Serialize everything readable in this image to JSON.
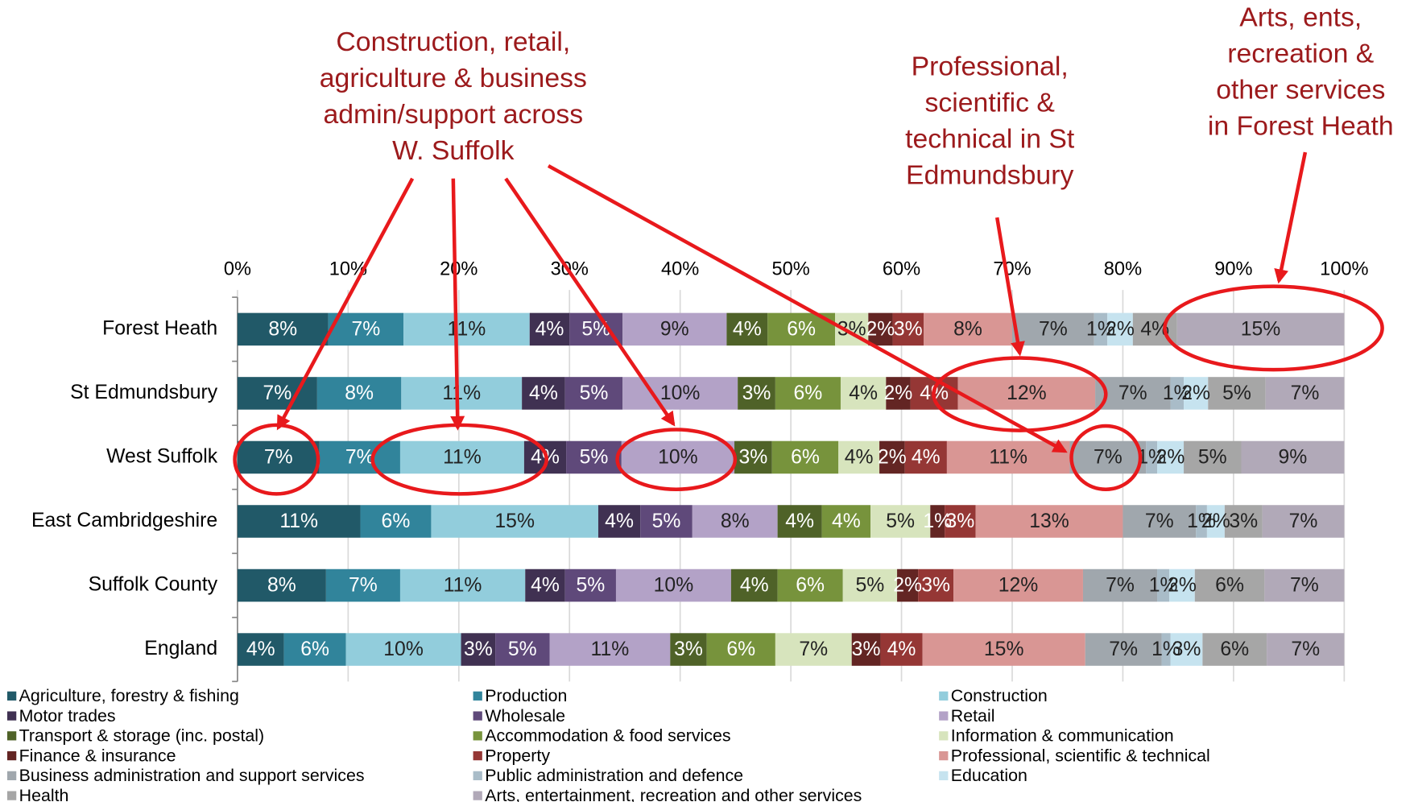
{
  "chart_data": {
    "type": "stacked_barh",
    "categories": [
      "Forest Heath",
      "St Edmundsbury",
      "West Suffolk",
      "East Cambridgeshire",
      "Suffolk County",
      "England"
    ],
    "xlim": [
      0,
      100
    ],
    "xticks": [
      {
        "value": 0,
        "label": "0%"
      },
      {
        "value": 10,
        "label": "10%"
      },
      {
        "value": 20,
        "label": "20%"
      },
      {
        "value": 30,
        "label": "30%"
      },
      {
        "value": 40,
        "label": "40%"
      },
      {
        "value": 50,
        "label": "50%"
      },
      {
        "value": 60,
        "label": "60%"
      },
      {
        "value": 70,
        "label": "70%"
      },
      {
        "value": 80,
        "label": "80%"
      },
      {
        "value": 90,
        "label": "90%"
      },
      {
        "value": 100,
        "label": "100%"
      }
    ],
    "grid": true,
    "series": [
      {
        "name": "Agriculture, forestry & fishing",
        "color": "#215968",
        "values": [
          8.2,
          7.2,
          7.4,
          11.1,
          8.0,
          4.2
        ],
        "value_labels": [
          "8%",
          "7%",
          "7%",
          "11%",
          "8%",
          "4%"
        ]
      },
      {
        "name": "Production",
        "color": "#31849b",
        "values": [
          6.8,
          7.6,
          7.3,
          6.4,
          6.7,
          5.6
        ],
        "value_labels": [
          "7%",
          "8%",
          "7%",
          "6%",
          "7%",
          "6%"
        ]
      },
      {
        "name": "Construction",
        "color": "#92cddc",
        "values": [
          11.4,
          10.9,
          11.2,
          15.1,
          11.3,
          10.4
        ],
        "value_labels": [
          "11%",
          "11%",
          "11%",
          "15%",
          "11%",
          "10%"
        ]
      },
      {
        "name": "Motor trades",
        "color": "#403152",
        "values": [
          3.6,
          3.9,
          3.8,
          3.8,
          3.6,
          3.1
        ],
        "value_labels": [
          "4%",
          "4%",
          "4%",
          "4%",
          "4%",
          "3%"
        ]
      },
      {
        "name": "Wholesale",
        "color": "#5f497a",
        "values": [
          4.8,
          5.2,
          5.0,
          4.7,
          4.6,
          4.9
        ],
        "value_labels": [
          "5%",
          "5%",
          "5%",
          "5%",
          "5%",
          "5%"
        ]
      },
      {
        "name": "Retail",
        "color": "#b3a2c7",
        "values": [
          9.4,
          10.4,
          10.2,
          7.7,
          10.4,
          10.9
        ],
        "value_labels": [
          "9%",
          "10%",
          "10%",
          "8%",
          "10%",
          "11%"
        ]
      },
      {
        "name": "Transport & storage (inc. postal)",
        "color": "#4f6228",
        "values": [
          3.7,
          3.4,
          3.4,
          4.0,
          4.2,
          3.3
        ],
        "value_labels": [
          "4%",
          "3%",
          "3%",
          "4%",
          "4%",
          "3%"
        ]
      },
      {
        "name": "Accommodation & food services",
        "color": "#77933c",
        "values": [
          6.1,
          5.9,
          6.0,
          4.4,
          5.9,
          6.2
        ],
        "value_labels": [
          "6%",
          "6%",
          "6%",
          "4%",
          "6%",
          "6%"
        ]
      },
      {
        "name": "Information & communication",
        "color": "#d7e4bd",
        "values": [
          3.0,
          4.1,
          3.7,
          5.4,
          4.9,
          6.9
        ],
        "value_labels": [
          "3%",
          "4%",
          "4%",
          "5%",
          "5%",
          "7%"
        ]
      },
      {
        "name": "Finance & insurance",
        "color": "#632523",
        "values": [
          2.2,
          2.2,
          2.3,
          1.3,
          1.9,
          2.6
        ],
        "value_labels": [
          "2%",
          "2%",
          "2%",
          "1%",
          "2%",
          "3%"
        ]
      },
      {
        "name": "Property",
        "color": "#953735",
        "values": [
          2.8,
          4.3,
          3.8,
          2.8,
          3.2,
          3.8
        ],
        "value_labels": [
          "3%",
          "4%",
          "4%",
          "3%",
          "3%",
          "4%"
        ]
      },
      {
        "name": "Professional, scientific & technical",
        "color": "#d99694",
        "values": [
          8.0,
          12.4,
          11.1,
          13.3,
          11.7,
          14.7
        ],
        "value_labels": [
          "8%",
          "12%",
          "11%",
          "13%",
          "12%",
          "15%"
        ]
      },
      {
        "name": "Business administration and support services",
        "color": "#a0a7ad",
        "values": [
          7.4,
          6.8,
          6.9,
          6.6,
          6.7,
          6.9
        ],
        "value_labels": [
          "7%",
          "7%",
          "7%",
          "7%",
          "7%",
          "7%"
        ]
      },
      {
        "name": "Public administration and defence",
        "color": "#a9bcc8",
        "values": [
          1.2,
          1.2,
          1.0,
          1.0,
          1.1,
          0.8
        ],
        "value_labels": [
          "1%",
          "1%",
          "1%",
          "1%",
          "1%",
          "1%"
        ]
      },
      {
        "name": "Education",
        "color": "#c6e3ef",
        "values": [
          2.3,
          2.2,
          2.4,
          1.6,
          2.3,
          2.9
        ],
        "value_labels": [
          "2%",
          "2%",
          "2%",
          "2%",
          "2%",
          "3%"
        ]
      },
      {
        "name": "Health",
        "color": "#a6a6a6",
        "values": [
          4.0,
          5.2,
          5.2,
          3.4,
          6.3,
          5.8
        ],
        "value_labels": [
          "4%",
          "5%",
          "5%",
          "3%",
          "6%",
          "6%"
        ]
      },
      {
        "name": "Arts, entertainment, recreation and other services",
        "color": "#b1a9b8",
        "values": [
          15.1,
          7.1,
          9.3,
          7.4,
          7.2,
          7.0
        ],
        "value_labels": [
          "15%",
          "7%",
          "9%",
          "7%",
          "7%",
          "7%"
        ]
      }
    ],
    "annotations": [
      {
        "lines": [
          "Construction, retail,",
          "agriculture & business",
          "admin/support across",
          "W. Suffolk"
        ]
      },
      {
        "lines": [
          "Professional,",
          "scientific &",
          "technical in St",
          "Edmundsbury"
        ]
      },
      {
        "lines": [
          "Arts, ents,",
          "recreation &",
          "other services",
          "in Forest Heath"
        ]
      }
    ]
  }
}
